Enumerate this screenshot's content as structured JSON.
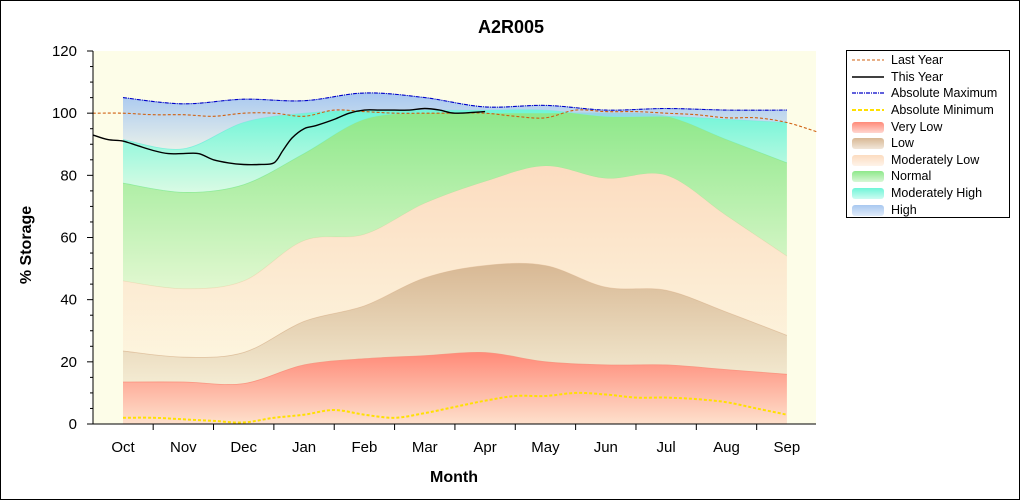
{
  "chart_data": {
    "type": "area",
    "title": "A2R005",
    "xlabel": "Month",
    "ylabel": "% Storage",
    "ylim": [
      0,
      120
    ],
    "yticks": [
      0,
      20,
      40,
      60,
      80,
      100,
      120
    ],
    "grid": false,
    "legend_position": "right",
    "categories": [
      "Oct",
      "Nov",
      "Dec",
      "Jan",
      "Feb",
      "Mar",
      "Apr",
      "May",
      "Jun",
      "Jul",
      "Aug",
      "Sep"
    ],
    "bands": [
      {
        "name": "Very Low",
        "color": "#ff8a78",
        "upper": [
          13.5,
          13.5,
          13,
          19,
          21,
          22,
          23,
          20,
          19,
          19,
          17.5,
          16
        ]
      },
      {
        "name": "Low",
        "color": "#d8b894",
        "upper": [
          23.5,
          21.5,
          23,
          33,
          38,
          47,
          51,
          51,
          44,
          43,
          36,
          28.5
        ]
      },
      {
        "name": "Moderately Low",
        "color": "#fcdcc0",
        "upper": [
          46,
          43.5,
          46,
          59,
          61,
          71,
          78,
          83,
          79,
          80,
          67,
          54
        ]
      },
      {
        "name": "Normal",
        "color": "#8ee88a",
        "upper": [
          77.5,
          74.5,
          77,
          87,
          98,
          100,
          100,
          100,
          100,
          99,
          91.5,
          84
        ]
      },
      {
        "name": "Moderately High",
        "color": "#6ff5d8",
        "upper": [
          91.5,
          88.5,
          97,
          100,
          101,
          101,
          101,
          101,
          99,
          99,
          98,
          97
        ]
      },
      {
        "name": "High",
        "color": "#a8c8f0",
        "upper": [
          105,
          103,
          104.5,
          104,
          106.5,
          105,
          102,
          102.5,
          101,
          101.5,
          101,
          101
        ]
      }
    ],
    "series": [
      {
        "name": "Last Year",
        "color": "#d06010",
        "style": "dashed",
        "x": [
          -0.5,
          0,
          0.5,
          1,
          1.5,
          2,
          2.5,
          3,
          3.5,
          4,
          4.5,
          5,
          5.5,
          6,
          6.5,
          7,
          7.5,
          8,
          8.5,
          9,
          9.5,
          10,
          10.5,
          11,
          11.5
        ],
        "values": [
          100,
          100,
          99.5,
          99.5,
          99,
          100,
          100,
          99,
          101,
          100.5,
          100,
          100,
          100,
          100,
          99,
          98.5,
          101,
          100.5,
          100.5,
          100,
          99.5,
          98.5,
          98.5,
          97,
          94
        ]
      },
      {
        "name": "This Year",
        "color": "#000000",
        "style": "solid",
        "x": [
          -0.5,
          -0.25,
          0,
          0.25,
          0.5,
          0.75,
          1,
          1.25,
          1.5,
          1.75,
          2,
          2.25,
          2.5,
          2.65,
          2.8,
          3,
          3.2,
          3.5,
          3.75,
          4,
          4.25,
          4.5,
          4.75,
          5,
          5.25,
          5.5,
          6
        ],
        "values": [
          93,
          91.5,
          91,
          89.5,
          88,
          87,
          87,
          87,
          85,
          84,
          83.5,
          83.5,
          84,
          88,
          92,
          95,
          96,
          98,
          100,
          101,
          101,
          101,
          101,
          101.5,
          101,
          100,
          100.5
        ]
      },
      {
        "name": "Absolute Maximum",
        "color": "#0000c8",
        "style": "dash-dot",
        "x": [
          0,
          1,
          2,
          3,
          4,
          5,
          6,
          7,
          8,
          9,
          10,
          11
        ],
        "values": [
          105,
          103,
          104.5,
          104,
          106.5,
          105,
          102,
          102.5,
          101,
          101.5,
          101,
          101
        ]
      },
      {
        "name": "Absolute Minimum",
        "color": "#ffe000",
        "style": "dashed",
        "x": [
          0,
          0.5,
          1,
          1.5,
          2,
          2.5,
          3,
          3.5,
          4,
          4.5,
          5,
          5.5,
          6,
          6.5,
          7,
          7.5,
          8,
          8.5,
          9,
          9.5,
          10,
          10.5,
          11
        ],
        "values": [
          2,
          2,
          1.5,
          1,
          0.5,
          2,
          3,
          4.5,
          3,
          2,
          3.5,
          5.5,
          7.5,
          9,
          9,
          10,
          9.5,
          8.5,
          8.5,
          8,
          7,
          5,
          3
        ]
      }
    ],
    "legend": [
      {
        "label": "Last Year",
        "kind": "line",
        "color": "#d06010",
        "dash": "3,2",
        "width": 1
      },
      {
        "label": "This Year",
        "kind": "line",
        "color": "#000000",
        "dash": "",
        "width": 1.4
      },
      {
        "label": "Absolute Maximum",
        "kind": "line",
        "color": "#0000c8",
        "dash": "4,1,1,1",
        "width": 1.2
      },
      {
        "label": "Absolute Minimum",
        "kind": "line",
        "color": "#ffe000",
        "dash": "4,2",
        "width": 2
      },
      {
        "label": "Very Low",
        "kind": "fill",
        "color": "#ff8a78"
      },
      {
        "label": "Low",
        "kind": "fill",
        "color": "#d8b894"
      },
      {
        "label": "Moderately Low",
        "kind": "fill",
        "color": "#fcdcc0"
      },
      {
        "label": "Normal",
        "kind": "fill",
        "color": "#8ee88a"
      },
      {
        "label": "Moderately High",
        "kind": "fill",
        "color": "#6ff5d8"
      },
      {
        "label": "High",
        "kind": "fill",
        "color": "#a8c8f0"
      }
    ],
    "plot_background": "#fdfde8"
  }
}
